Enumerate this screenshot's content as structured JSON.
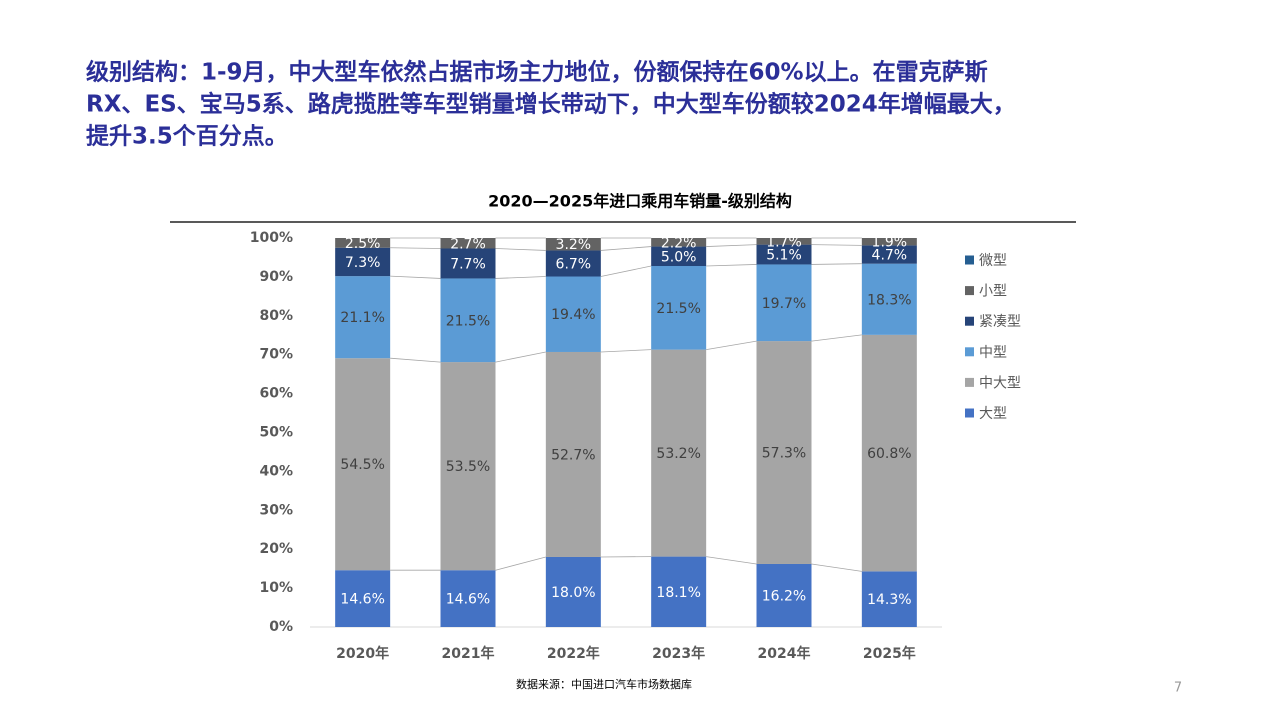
{
  "heading_lines": [
    "级别结构：1-9月，中大型车依然占据市场主力地位，份额保持在60%以上。在雷克萨斯",
    "RX、ES、宝马5系、路虎揽胜等车型销量增长带动下，中大型车份额较2024年增幅最大，",
    "提升3.5个百分点。"
  ],
  "chart_data": {
    "type": "stacked_bar",
    "title": "2020—2025年进口乘用车销量-级别结构",
    "categories": [
      "2020年",
      "2021年",
      "2022年",
      "2023年",
      "2024年",
      "2025年"
    ],
    "series": [
      {
        "name": "大型",
        "color": "#4472c4",
        "label_color": "#ffffff",
        "values": [
          14.6,
          14.6,
          18.0,
          18.1,
          16.2,
          14.3
        ],
        "value_labels": [
          "14.6%",
          "14.6%",
          "18.0%",
          "18.1%",
          "16.2%",
          "14.3%"
        ]
      },
      {
        "name": "中大型",
        "color": "#a5a5a5",
        "label_color": "#404040",
        "values": [
          54.5,
          53.5,
          52.7,
          53.2,
          57.3,
          60.8
        ],
        "value_labels": [
          "54.5%",
          "53.5%",
          "52.7%",
          "53.2%",
          "57.3%",
          "60.8%"
        ]
      },
      {
        "name": "中型",
        "color": "#5b9bd5",
        "label_color": "#404040",
        "values": [
          21.1,
          21.5,
          19.4,
          21.5,
          19.7,
          18.3
        ],
        "value_labels": [
          "21.1%",
          "21.5%",
          "19.4%",
          "21.5%",
          "19.7%",
          "18.3%"
        ]
      },
      {
        "name": "紧凑型",
        "color": "#264478",
        "label_color": "#ffffff",
        "values": [
          7.3,
          7.7,
          6.7,
          5.0,
          5.1,
          4.7
        ],
        "value_labels": [
          "7.3%",
          "7.7%",
          "6.7%",
          "5.0%",
          "5.1%",
          "4.7%"
        ]
      },
      {
        "name": "小型",
        "color": "#636363",
        "label_color": "#ffffff",
        "values": [
          2.5,
          2.7,
          3.2,
          2.2,
          1.7,
          1.9
        ],
        "value_labels": [
          "2.5%",
          "2.7%",
          "3.2%",
          "2.2%",
          "1.7%",
          "1.9%"
        ]
      },
      {
        "name": "微型",
        "color": "#255e91",
        "values": [
          0,
          0,
          0,
          0,
          0,
          0
        ]
      }
    ],
    "ylim": [
      0,
      100
    ],
    "yticks": [
      {
        "value": 0,
        "label": "0%"
      },
      {
        "value": 10,
        "label": "10%"
      },
      {
        "value": 20,
        "label": "20%"
      },
      {
        "value": 30,
        "label": "30%"
      },
      {
        "value": 40,
        "label": "40%"
      },
      {
        "value": 50,
        "label": "50%"
      },
      {
        "value": 60,
        "label": "60%"
      },
      {
        "value": 70,
        "label": "70%"
      },
      {
        "value": 80,
        "label": "80%"
      },
      {
        "value": 90,
        "label": "90%"
      },
      {
        "value": 100,
        "label": "100%"
      }
    ],
    "legend": "right",
    "source": "数据来源：中国进口汽车市场数据库"
  },
  "page_number": "7"
}
